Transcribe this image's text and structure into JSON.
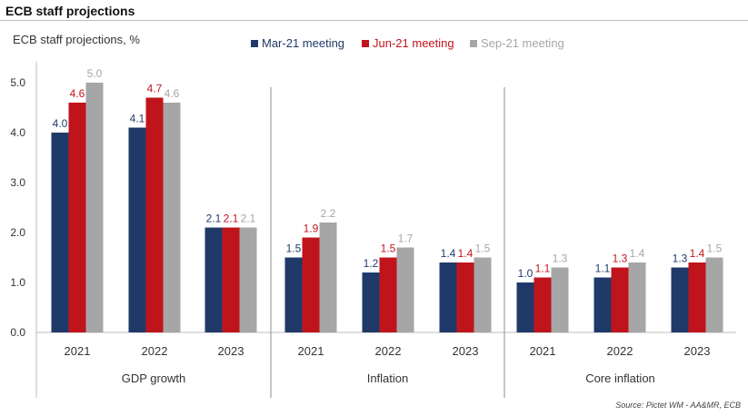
{
  "header": {
    "title": "ECB staff projections"
  },
  "chart_data": {
    "type": "bar",
    "ylabel": "ECB staff projections, %",
    "ylim": [
      0,
      5.5
    ],
    "yticks": [
      "0.0",
      "1.0",
      "2.0",
      "3.0",
      "4.0",
      "5.0"
    ],
    "legend_position": "top",
    "series": [
      {
        "name": "Mar-21 meeting",
        "color": "#1f3a68"
      },
      {
        "name": "Jun-21 meeting",
        "color": "#c0141c"
      },
      {
        "name": "Sep-21 meeting",
        "color": "#a6a6a6"
      }
    ],
    "groups": [
      {
        "name": "GDP growth",
        "categories": [
          {
            "label": "2021",
            "values": [
              4.0,
              4.6,
              5.0
            ],
            "labels": [
              "4.0",
              "4.6",
              "5.0"
            ]
          },
          {
            "label": "2022",
            "values": [
              4.1,
              4.7,
              4.6
            ],
            "labels": [
              "4.1",
              "4.7",
              "4.6"
            ]
          },
          {
            "label": "2023",
            "values": [
              2.1,
              2.1,
              2.1
            ],
            "labels": [
              "2.1",
              "2.1",
              "2.1"
            ]
          }
        ]
      },
      {
        "name": "Inflation",
        "categories": [
          {
            "label": "2021",
            "values": [
              1.5,
              1.9,
              2.2
            ],
            "labels": [
              "1.5",
              "1.9",
              "2.2"
            ]
          },
          {
            "label": "2022",
            "values": [
              1.2,
              1.5,
              1.7
            ],
            "labels": [
              "1.2",
              "1.5",
              "1.7"
            ]
          },
          {
            "label": "2023",
            "values": [
              1.4,
              1.4,
              1.5
            ],
            "labels": [
              "1.4",
              "1.4",
              "1.5"
            ]
          }
        ]
      },
      {
        "name": "Core inflation",
        "categories": [
          {
            "label": "2021",
            "values": [
              1.0,
              1.1,
              1.3
            ],
            "labels": [
              "1.0",
              "1.1",
              "1.3"
            ]
          },
          {
            "label": "2022",
            "values": [
              1.1,
              1.3,
              1.4
            ],
            "labels": [
              "1.1",
              "1.3",
              "1.4"
            ]
          },
          {
            "label": "2023",
            "values": [
              1.3,
              1.4,
              1.5
            ],
            "labels": [
              "1.3",
              "1.4",
              "1.5"
            ]
          }
        ]
      }
    ],
    "source": "Source: Pictet WM - AA&MR, ECB"
  }
}
